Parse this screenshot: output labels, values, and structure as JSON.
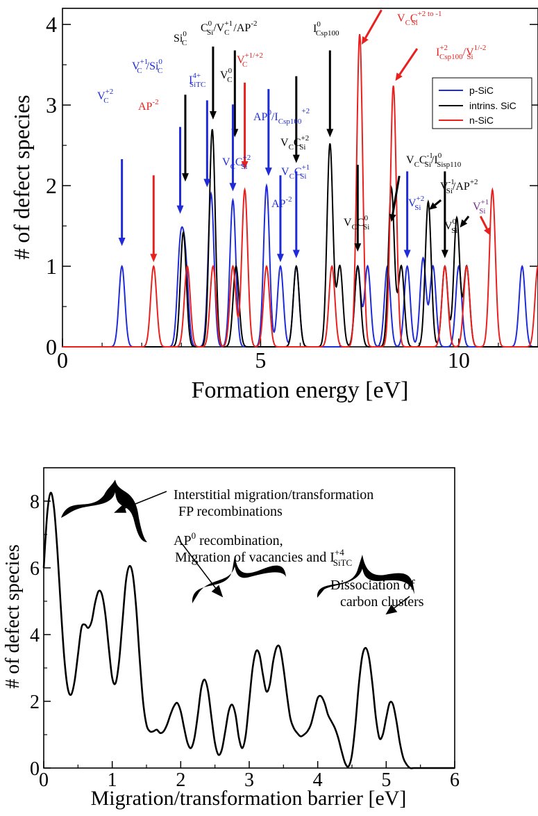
{
  "colors": {
    "p": "#1e2bd6",
    "intrinsic": "#000000",
    "n": "#e8211e",
    "purple": "#7a2a8f"
  },
  "chart_data": [
    {
      "type": "line",
      "title": "",
      "xlabel": "Formation energy [eV]",
      "ylabel": "# of defect species",
      "xlim": [
        0,
        12
      ],
      "ylim": [
        0,
        4.2
      ],
      "xticks": [
        0,
        5,
        10
      ],
      "yticks": [
        0,
        1,
        2,
        3,
        4
      ],
      "xtick_labels": [
        "0",
        "5",
        "10"
      ],
      "ytick_labels": [
        "0",
        "1",
        "2",
        "3",
        "4"
      ],
      "grid": false,
      "legend": "top-right",
      "series": [
        {
          "name": "p-SiC",
          "color": "#1e2bd6",
          "peaks": [
            [
              1.5,
              1.0
            ],
            [
              2.97,
              1.15
            ],
            [
              3.1,
              1.0
            ],
            [
              3.75,
              1.9
            ],
            [
              4.3,
              1.82
            ],
            [
              5.15,
              2.0
            ],
            [
              5.5,
              1.0
            ],
            [
              5.9,
              1.0
            ],
            [
              7.45,
              1.0
            ],
            [
              7.7,
              1.0
            ],
            [
              8.2,
              1.0
            ],
            [
              8.7,
              1.0
            ],
            [
              9.1,
              1.1
            ],
            [
              9.35,
              1.0
            ],
            [
              10.0,
              1.0
            ],
            [
              11.6,
              1.0
            ]
          ]
        },
        {
          "name": "intrins. SiC",
          "color": "#000000",
          "peaks": [
            [
              3.05,
              1.42
            ],
            [
              3.78,
              2.7
            ],
            [
              4.38,
              1.0
            ],
            [
              5.9,
              1.0
            ],
            [
              6.75,
              2.52
            ],
            [
              7.0,
              1.0
            ],
            [
              7.45,
              1.0
            ],
            [
              8.3,
              1.97
            ],
            [
              8.55,
              1.0
            ],
            [
              9.23,
              1.8
            ],
            [
              9.65,
              1.0
            ],
            [
              9.95,
              1.6
            ],
            [
              10.2,
              1.0
            ]
          ]
        },
        {
          "name": "n-SiC",
          "color": "#e8211e",
          "peaks": [
            [
              2.3,
              1.0
            ],
            [
              3.15,
              1.0
            ],
            [
              3.8,
              1.0
            ],
            [
              4.3,
              1.0
            ],
            [
              4.6,
              1.95
            ],
            [
              5.15,
              1.0
            ],
            [
              6.8,
              1.0
            ],
            [
              7.5,
              3.88
            ],
            [
              8.35,
              3.24
            ],
            [
              9.65,
              1.0
            ],
            [
              10.2,
              1.0
            ],
            [
              10.85,
              1.95
            ],
            [
              12.0,
              1.0
            ]
          ]
        }
      ],
      "annotations": [
        {
          "base": "V",
          "sup": "+2",
          "sub": "C",
          "color_key": "p"
        },
        {
          "base": "AP",
          "sup": "-2",
          "sub": "",
          "color_key": "n"
        },
        {
          "base": "V",
          "sup": "+1",
          "sub": "C",
          "color_key": "p"
        },
        {
          "base": "/Si",
          "sup": "0",
          "sub": "C",
          "color_key": "p"
        },
        {
          "base": "Si",
          "sup": "0",
          "sub": "C",
          "color_key": "intrinsic"
        },
        {
          "base": "I",
          "sup": "4+",
          "sub": "SiTC",
          "color_key": "p"
        },
        {
          "base": "C",
          "sup": "0",
          "sub": "Si",
          "color_key": "intrinsic"
        },
        {
          "base": "/V",
          "sup": "+1",
          "sub": "C",
          "color_key": "intrinsic"
        },
        {
          "base": "/AP",
          "sup": "-2",
          "sub": "",
          "color_key": "intrinsic"
        },
        {
          "base": "V",
          "sup": "0",
          "sub": "C",
          "color_key": "intrinsic"
        },
        {
          "base": "V",
          "sup": "+1/+2",
          "sub": "C",
          "color_key": "n"
        },
        {
          "base": "V",
          "sup": "",
          "sub": "C",
          "color_key": "p"
        },
        {
          "base": "C",
          "sup": "+2",
          "sub": "Si",
          "color_key": "p"
        },
        {
          "base": "AP",
          "sup": "0",
          "sub": "",
          "color_key": "p"
        },
        {
          "base": "/I",
          "sup": "+2",
          "sub": "Csp100",
          "color_key": "p"
        },
        {
          "base": "AP",
          "sup": "-2",
          "sub": "",
          "color_key": "p"
        },
        {
          "base": "V",
          "sup": "",
          "sub": "C",
          "color_key": "intrinsic"
        },
        {
          "base": "C",
          "sup": "+2",
          "sub": "Si",
          "color_key": "intrinsic"
        },
        {
          "base": "V",
          "sup": "",
          "sub": "C",
          "color_key": "p"
        },
        {
          "base": "C",
          "sup": "+1",
          "sub": "Si",
          "color_key": "p"
        },
        {
          "base": "I",
          "sup": "0",
          "sub": "Csp100",
          "color_key": "intrinsic"
        },
        {
          "base": "V",
          "sup": "",
          "sub": "C",
          "color_key": "n"
        },
        {
          "base": "C",
          "sup": "+2 to -1",
          "sub": "Si",
          "color_key": "n"
        },
        {
          "base": "I",
          "sup": "+2",
          "sub": "Csp100",
          "color_key": "n"
        },
        {
          "base": "/V",
          "sup": "1/-2",
          "sub": "Si",
          "color_key": "n"
        },
        {
          "base": "V",
          "sup": "",
          "sub": "C",
          "color_key": "intrinsic"
        },
        {
          "base": "C",
          "sup": "0",
          "sub": "Si",
          "color_key": "intrinsic"
        },
        {
          "base": "V",
          "sup": "",
          "sub": "C",
          "color_key": "intrinsic"
        },
        {
          "base": "C",
          "sup": "-1",
          "sub": "Si",
          "color_key": "intrinsic"
        },
        {
          "base": "/I",
          "sup": "0",
          "sub": "Sisp110",
          "color_key": "intrinsic"
        },
        {
          "base": "V",
          "sup": "+2",
          "sub": "Si",
          "color_key": "p"
        },
        {
          "base": "V",
          "sup": "-1",
          "sub": "Si",
          "color_key": "intrinsic"
        },
        {
          "base": "/AP",
          "sup": "+2",
          "sub": "",
          "color_key": "intrinsic"
        },
        {
          "base": "V",
          "sup": "0",
          "sub": "Si",
          "color_key": "intrinsic"
        },
        {
          "base": "V",
          "sup": "+1",
          "sub": "Si",
          "color_key": "purple"
        }
      ],
      "arrows": [
        {
          "label": "V_C+2",
          "x": 1.5,
          "y_tip": 1.25,
          "color_key": "p"
        },
        {
          "label": "AP-2",
          "x": 2.3,
          "y_tip": 1.05,
          "color_key": "n"
        },
        {
          "label": "V_C+1/Si_C0",
          "x": 2.97,
          "y_tip": 1.65,
          "color_key": "p"
        },
        {
          "label": "Si_C0",
          "x": 3.1,
          "y_tip": 2.05,
          "color_key": "intrinsic"
        },
        {
          "label": "I_SiTC4+",
          "x": 3.65,
          "y_tip": 1.98,
          "color_key": "p"
        },
        {
          "label": "C_Si0/V_C+1/AP-2",
          "x": 3.8,
          "y_tip": 2.82,
          "color_key": "intrinsic"
        },
        {
          "label": "V_C0",
          "x": 4.35,
          "y_tip": 2.6,
          "color_key": "intrinsic"
        },
        {
          "label": "V_C+1/+2",
          "x": 4.6,
          "y_tip": 2.2,
          "color_key": "n"
        },
        {
          "label": "V_CC_Si+2",
          "x": 4.3,
          "y_tip": 1.93,
          "color_key": "p"
        },
        {
          "label": "AP0/I_Csp100+2",
          "x": 5.2,
          "y_tip": 2.12,
          "color_key": "p"
        },
        {
          "label": "AP-2",
          "x": 5.5,
          "y_tip": 1.05,
          "color_key": "p"
        },
        {
          "label": "V_CC_Si+2 intr",
          "x": 5.9,
          "y_tip": 2.28,
          "color_key": "intrinsic"
        },
        {
          "label": "V_CC_Si+1",
          "x": 5.9,
          "y_tip": 1.1,
          "color_key": "p"
        },
        {
          "label": "I_Csp1000",
          "x": 6.75,
          "y_tip": 2.6,
          "color_key": "intrinsic"
        },
        {
          "label": "V_CC_Si0",
          "x": 7.45,
          "y_tip": 1.18,
          "color_key": "intrinsic"
        },
        {
          "label": "V_Si+2",
          "x": 8.7,
          "y_tip": 1.1,
          "color_key": "p"
        },
        {
          "label": "V_Si0",
          "x": 9.65,
          "y_tip": 1.1,
          "color_key": "intrinsic"
        }
      ],
      "diagonal_arrows": [
        {
          "label": "V_CC_Si+2 to -1",
          "from": [
            8.05,
            4.18
          ],
          "to": [
            7.55,
            3.75
          ],
          "color_key": "n"
        },
        {
          "label": "I_Csp100+2/V_Si1/-2",
          "from": [
            8.95,
            3.7
          ],
          "to": [
            8.4,
            3.3
          ],
          "color_key": "n"
        },
        {
          "label": "V_CC_Si-1/I_Sisp1100",
          "from": [
            8.5,
            2.12
          ],
          "to": [
            8.3,
            1.55
          ],
          "color_key": "intrinsic"
        },
        {
          "label": "V_Si-1/AP+2",
          "from": [
            9.55,
            1.82
          ],
          "to": [
            9.25,
            1.7
          ],
          "color_key": "intrinsic"
        },
        {
          "label": "V_Si0 b",
          "from": [
            10.25,
            1.62
          ],
          "to": [
            10.03,
            1.48
          ],
          "color_key": "intrinsic"
        },
        {
          "label": "V_Si+1",
          "from": [
            10.55,
            1.62
          ],
          "to": [
            10.8,
            1.38
          ],
          "color_key": "n"
        }
      ]
    },
    {
      "type": "line",
      "title": "",
      "xlabel": "Migration/transformation barrier [eV]",
      "ylabel": "# of defect species",
      "xlim": [
        0,
        6
      ],
      "ylim": [
        0,
        9
      ],
      "xticks": [
        0,
        1,
        2,
        3,
        4,
        5,
        6
      ],
      "yticks": [
        0,
        2,
        4,
        6,
        8
      ],
      "xtick_labels": [
        "0",
        "1",
        "2",
        "3",
        "4",
        "5",
        "6"
      ],
      "ytick_labels": [
        "0",
        "2",
        "4",
        "6",
        "8"
      ],
      "grid": false,
      "legend": "none",
      "series": [
        {
          "name": "",
          "color": "#000000",
          "x": [
            0,
            0.05,
            0.1,
            0.15,
            0.2,
            0.25,
            0.3,
            0.35,
            0.4,
            0.45,
            0.5,
            0.55,
            0.6,
            0.65,
            0.7,
            0.75,
            0.8,
            0.85,
            0.9,
            0.95,
            1.0,
            1.05,
            1.1,
            1.15,
            1.2,
            1.25,
            1.3,
            1.35,
            1.4,
            1.45,
            1.5,
            1.55,
            1.6,
            1.65,
            1.7,
            1.75,
            1.8,
            1.85,
            1.9,
            1.95,
            2.0,
            2.05,
            2.1,
            2.15,
            2.2,
            2.25,
            2.3,
            2.35,
            2.4,
            2.45,
            2.5,
            2.55,
            2.6,
            2.65,
            2.7,
            2.75,
            2.8,
            2.85,
            2.9,
            2.95,
            3.0,
            3.05,
            3.1,
            3.15,
            3.2,
            3.25,
            3.3,
            3.35,
            3.4,
            3.45,
            3.5,
            3.55,
            3.6,
            3.65,
            3.7,
            3.75,
            3.8,
            3.85,
            3.9,
            3.95,
            4.0,
            4.05,
            4.1,
            4.15,
            4.2,
            4.25,
            4.3,
            4.35,
            4.4,
            4.45,
            4.5,
            4.55,
            4.6,
            4.65,
            4.7,
            4.75,
            4.8,
            4.85,
            4.9,
            4.95,
            5.0,
            5.05,
            5.1,
            5.15,
            5.2,
            5.25,
            5.3,
            5.35,
            5.4,
            5.45,
            5.5,
            6.0
          ],
          "y": [
            6.0,
            7.6,
            8.25,
            7.8,
            6.5,
            4.8,
            3.3,
            2.4,
            2.2,
            2.6,
            3.4,
            4.2,
            4.3,
            4.2,
            4.4,
            4.95,
            5.3,
            5.2,
            4.6,
            3.6,
            2.7,
            2.55,
            3.2,
            4.4,
            5.6,
            6.05,
            5.8,
            4.8,
            3.3,
            2.0,
            1.3,
            1.1,
            1.1,
            1.15,
            1.05,
            1.1,
            1.3,
            1.6,
            1.85,
            1.95,
            1.7,
            1.2,
            0.75,
            0.6,
            0.9,
            1.6,
            2.4,
            2.65,
            2.3,
            1.5,
            0.75,
            0.4,
            0.55,
            1.1,
            1.7,
            1.9,
            1.6,
            0.9,
            0.6,
            1.0,
            2.0,
            3.0,
            3.5,
            3.4,
            2.8,
            2.3,
            2.5,
            3.2,
            3.62,
            3.6,
            3.0,
            2.2,
            1.5,
            1.2,
            1.05,
            0.95,
            1.0,
            1.1,
            1.3,
            1.7,
            2.1,
            2.15,
            1.95,
            1.6,
            1.4,
            1.2,
            0.9,
            0.5,
            0.15,
            0.05,
            0.4,
            1.3,
            2.5,
            3.35,
            3.6,
            3.3,
            2.5,
            1.5,
            0.9,
            1.0,
            1.5,
            1.95,
            1.9,
            1.4,
            0.75,
            0.3,
            0.1,
            0.0,
            0.0,
            0.0,
            0.0,
            0.0
          ]
        }
      ],
      "annotations": [
        {
          "text": "Interstitial migration/transformation"
        },
        {
          "text": "FP recombinations"
        },
        {
          "text_before": "AP",
          "sup": "0",
          "text_after": " recombination,"
        },
        {
          "text": "Migration of vacancies and I",
          "sup": "+4",
          "sub": "SiTC"
        },
        {
          "text": "Dissociation of"
        },
        {
          "text": "carbon clusters"
        }
      ]
    }
  ]
}
